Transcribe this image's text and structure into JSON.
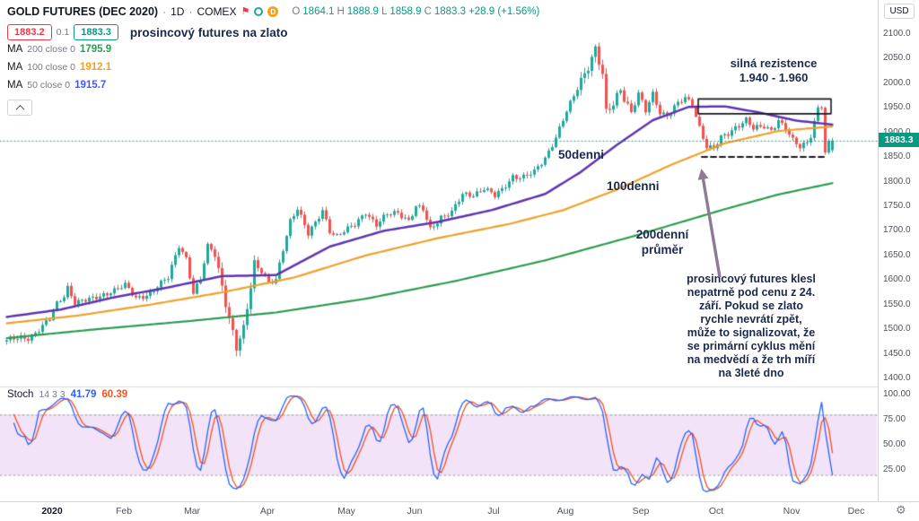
{
  "colors": {
    "up": "#26a69a",
    "down": "#ef5350",
    "accent": "#089981",
    "red": "#f23645",
    "ma50": "#5e35b1",
    "ma100": "#f0a029",
    "ma200": "#2e9b4f",
    "stoch_k": "#2962ff",
    "stoch_d": "#f4511e",
    "stoch_band": "#c77ede",
    "text": "#131722",
    "muted": "#787b86",
    "axis_text": "#50535e",
    "border": "#d1d4dc",
    "annotation": "#1b2a4b",
    "drawing": "#16181e",
    "arrow": "#8d7b96"
  },
  "icons": {
    "flag": "⚑",
    "delayed": "D",
    "gear": "⚙"
  },
  "header": {
    "title": "GOLD FUTURES (DEC 2020)",
    "sep": "·",
    "interval": "1D",
    "exchange": "COMEX",
    "ohlc": {
      "o_label": "O",
      "o": "1864.1",
      "h_label": "H",
      "h": "1888.9",
      "l_label": "L",
      "l": "1858.9",
      "c_label": "C",
      "c": "1883.3",
      "change": "+28.9 (+1.56%)"
    },
    "bid": "1883.2",
    "spread": "0.1",
    "ask": "1883.3",
    "note": "prosincový futures na zlato",
    "ma200": {
      "label": "MA",
      "params": "200 close 0",
      "value": "1795.9"
    },
    "ma100": {
      "label": "MA",
      "params": "100 close 0",
      "value": "1912.1"
    },
    "ma50": {
      "label": "MA",
      "params": "50 close 0",
      "value": "1915.7"
    }
  },
  "axis": {
    "currency": "USD",
    "price_tag": "1883.3"
  },
  "stoch_header": {
    "name": "Stoch",
    "params": "14 3 3",
    "k": "41.79",
    "d": "60.39"
  },
  "annotations": {
    "resistance_line1": "silná rezistence",
    "resistance_line2": "1.940 - 1.960",
    "ma50_label": "50denni",
    "ma100_label": "100denni",
    "ma200_label": "200denní\nprůměr",
    "paragraph": "prosincový futures klesl\nnepatrně pod cenu z 24.\nzáří. Pokud se zlato\nrychle nevrátí zpět,\nmůže to signalizovat, že\nse primární cyklus mění\nna medvědí a že trh míří\nna 3leté dno"
  },
  "chart_data": [
    {
      "type": "candlestick",
      "title": "GOLD FUTURES (DEC 2020) · 1D · COMEX",
      "ylabel": "USD",
      "ylim": [
        1400,
        2100
      ],
      "y_ticks": [
        "2100.0",
        "2050.0",
        "2000.0",
        "1950.0",
        "1900.0",
        "1850.0",
        "1800.0",
        "1750.0",
        "1700.0",
        "1650.0",
        "1600.0",
        "1550.0",
        "1500.0",
        "1450.0",
        "1400.0"
      ],
      "time_ticks": [
        {
          "label": "2020",
          "day": 13
        },
        {
          "label": "Feb",
          "day": 33
        },
        {
          "label": "Mar",
          "day": 52
        },
        {
          "label": "Apr",
          "day": 73
        },
        {
          "label": "May",
          "day": 95
        },
        {
          "label": "Jun",
          "day": 114
        },
        {
          "label": "Jul",
          "day": 136
        },
        {
          "label": "Aug",
          "day": 156
        },
        {
          "label": "Sep",
          "day": 177
        },
        {
          "label": "Oct",
          "day": 198
        },
        {
          "label": "Nov",
          "day": 219
        },
        {
          "label": "Dec",
          "day": 237
        }
      ],
      "candle_count": 231,
      "last_candle": {
        "open": 1864.1,
        "high": 1888.9,
        "low": 1858.9,
        "close": 1883.3,
        "change": 28.9,
        "change_pct": 1.56
      },
      "close_keypoints": [
        [
          0,
          1478
        ],
        [
          6,
          1482
        ],
        [
          12,
          1520
        ],
        [
          14,
          1550
        ],
        [
          16,
          1568
        ],
        [
          17,
          1586
        ],
        [
          19,
          1556
        ],
        [
          24,
          1560
        ],
        [
          29,
          1578
        ],
        [
          33,
          1588
        ],
        [
          36,
          1563
        ],
        [
          40,
          1574
        ],
        [
          45,
          1604
        ],
        [
          47,
          1650
        ],
        [
          48,
          1672
        ],
        [
          50,
          1645
        ],
        [
          52,
          1572
        ],
        [
          54,
          1600
        ],
        [
          56,
          1668
        ],
        [
          58,
          1658
        ],
        [
          60,
          1590
        ],
        [
          62,
          1520
        ],
        [
          64,
          1458
        ],
        [
          66,
          1498
        ],
        [
          69,
          1638
        ],
        [
          71,
          1620
        ],
        [
          73,
          1592
        ],
        [
          75,
          1598
        ],
        [
          77,
          1662
        ],
        [
          79,
          1722
        ],
        [
          81,
          1748
        ],
        [
          84,
          1692
        ],
        [
          86,
          1714
        ],
        [
          88,
          1742
        ],
        [
          90,
          1702
        ],
        [
          92,
          1690
        ],
        [
          95,
          1702
        ],
        [
          97,
          1712
        ],
        [
          100,
          1740
        ],
        [
          103,
          1712
        ],
        [
          106,
          1732
        ],
        [
          109,
          1738
        ],
        [
          112,
          1722
        ],
        [
          114,
          1748
        ],
        [
          116,
          1742
        ],
        [
          118,
          1702
        ],
        [
          121,
          1730
        ],
        [
          124,
          1738
        ],
        [
          127,
          1772
        ],
        [
          130,
          1774
        ],
        [
          133,
          1788
        ],
        [
          136,
          1770
        ],
        [
          138,
          1782
        ],
        [
          141,
          1812
        ],
        [
          144,
          1810
        ],
        [
          147,
          1818
        ],
        [
          150,
          1848
        ],
        [
          153,
          1892
        ],
        [
          156,
          1942
        ],
        [
          158,
          1972
        ],
        [
          160,
          2006
        ],
        [
          162,
          2038
        ],
        [
          164,
          2072
        ],
        [
          166,
          2016
        ],
        [
          167,
          1936
        ],
        [
          169,
          1956
        ],
        [
          171,
          1990
        ],
        [
          174,
          1942
        ],
        [
          176,
          1978
        ],
        [
          178,
          1942
        ],
        [
          180,
          1978
        ],
        [
          182,
          1942
        ],
        [
          184,
          1936
        ],
        [
          187,
          1958
        ],
        [
          189,
          1968
        ],
        [
          191,
          1958
        ],
        [
          193,
          1912
        ],
        [
          195,
          1872
        ],
        [
          197,
          1866
        ],
        [
          199,
          1888
        ],
        [
          201,
          1898
        ],
        [
          203,
          1912
        ],
        [
          206,
          1926
        ],
        [
          208,
          1906
        ],
        [
          211,
          1912
        ],
        [
          213,
          1906
        ],
        [
          215,
          1926
        ],
        [
          217,
          1906
        ],
        [
          219,
          1882
        ],
        [
          221,
          1870
        ],
        [
          223,
          1882
        ],
        [
          224,
          1896
        ],
        [
          226,
          1950
        ],
        [
          227,
          1954
        ],
        [
          228,
          1856
        ],
        [
          229,
          1876
        ],
        [
          230,
          1883
        ]
      ],
      "overlays": [
        {
          "name": "MA 50",
          "color": "#5e35b1",
          "width": 2.5,
          "last_value": 1915.7,
          "keypoints": [
            [
              0,
              1525
            ],
            [
              15,
              1540
            ],
            [
              30,
              1565
            ],
            [
              45,
              1585
            ],
            [
              60,
              1608
            ],
            [
              75,
              1610
            ],
            [
              90,
              1668
            ],
            [
              105,
              1700
            ],
            [
              120,
              1718
            ],
            [
              135,
              1742
            ],
            [
              150,
              1775
            ],
            [
              160,
              1820
            ],
            [
              170,
              1875
            ],
            [
              180,
              1925
            ],
            [
              190,
              1952
            ],
            [
              200,
              1953
            ],
            [
              210,
              1940
            ],
            [
              220,
              1924
            ],
            [
              230,
              1916
            ]
          ]
        },
        {
          "name": "MA 100",
          "color": "#f0a029",
          "width": 2.2,
          "last_value": 1912.1,
          "keypoints": [
            [
              0,
              1512
            ],
            [
              20,
              1528
            ],
            [
              40,
              1550
            ],
            [
              60,
              1575
            ],
            [
              80,
              1605
            ],
            [
              100,
              1650
            ],
            [
              120,
              1685
            ],
            [
              140,
              1714
            ],
            [
              155,
              1742
            ],
            [
              170,
              1784
            ],
            [
              185,
              1834
            ],
            [
              200,
              1878
            ],
            [
              215,
              1903
            ],
            [
              230,
              1912
            ]
          ]
        },
        {
          "name": "MA 200",
          "color": "#2e9b4f",
          "width": 2.2,
          "last_value": 1795.9,
          "keypoints": [
            [
              0,
              1482
            ],
            [
              25,
              1500
            ],
            [
              50,
              1516
            ],
            [
              75,
              1534
            ],
            [
              100,
              1562
            ],
            [
              125,
              1598
            ],
            [
              150,
              1640
            ],
            [
              175,
              1690
            ],
            [
              200,
              1744
            ],
            [
              215,
              1774
            ],
            [
              230,
              1797
            ]
          ]
        }
      ],
      "drawings": {
        "resistance_box": {
          "day_start": 193,
          "day_end": 230,
          "price_low": 1938,
          "price_high": 1968
        },
        "support_dash": {
          "day_start": 194,
          "day_end": 228,
          "price": 1851
        },
        "price_line": 1883.3
      }
    },
    {
      "type": "line",
      "name": "Stochastic",
      "params": [
        14,
        3,
        3
      ],
      "series": [
        {
          "name": "%K",
          "last": 41.79
        },
        {
          "name": "%D",
          "last": 60.39
        }
      ],
      "ylim": [
        0,
        100
      ],
      "band": [
        20,
        80
      ],
      "y_ticks": [
        "100.00",
        "75.00",
        "50.00",
        "25.00"
      ]
    }
  ]
}
